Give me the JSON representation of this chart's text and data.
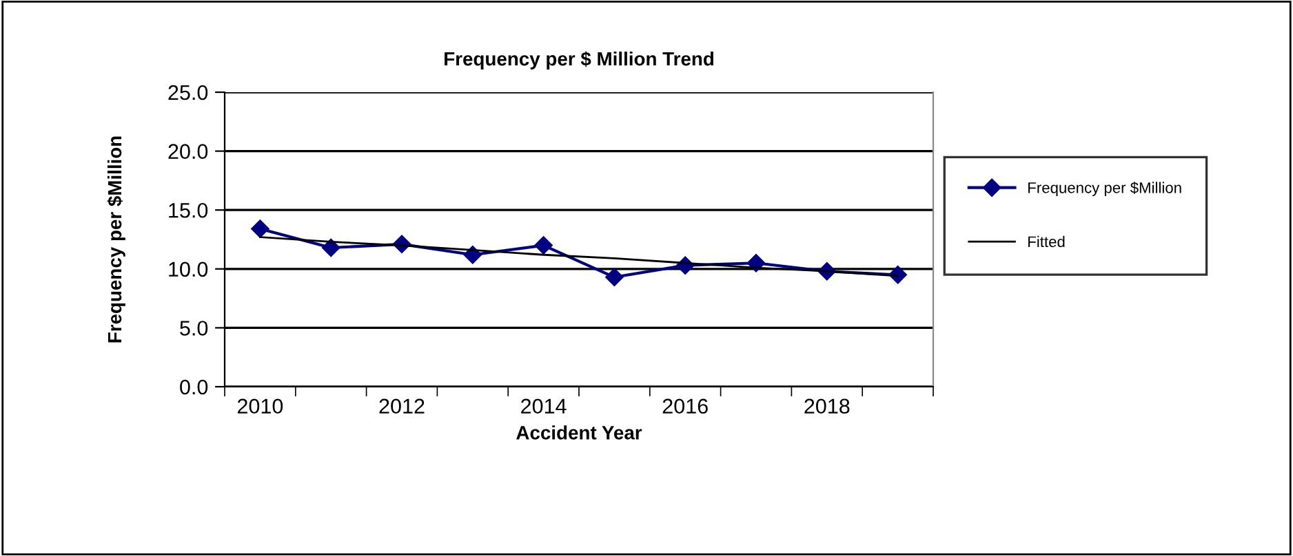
{
  "chart_data": {
    "type": "line",
    "title": "Frequency per $ Million Trend",
    "xlabel": "Accident Year",
    "ylabel": "Frequency per $Million",
    "categories": [
      "2010",
      null,
      "2012",
      null,
      "2014",
      null,
      "2016",
      null,
      "2018",
      null
    ],
    "series": [
      {
        "name": "Frequency per $Million",
        "color": "#000080",
        "marker": "diamond",
        "values": [
          13.4,
          11.8,
          12.1,
          11.2,
          12.0,
          9.3,
          10.3,
          10.5,
          9.8,
          9.5
        ]
      },
      {
        "name": "Fitted",
        "color": "#000000",
        "marker": "none",
        "values": [
          12.7,
          12.3,
          12.0,
          11.6,
          11.2,
          10.9,
          10.5,
          10.1,
          9.8,
          9.4
        ]
      }
    ],
    "ylim": [
      0,
      25
    ],
    "yticks": [
      {
        "value": 0,
        "label": "0.0"
      },
      {
        "value": 5,
        "label": "5.0"
      },
      {
        "value": 10,
        "label": "10.0"
      },
      {
        "value": 15,
        "label": "15.0"
      },
      {
        "value": 20,
        "label": "20.0"
      },
      {
        "value": 25,
        "label": "25.0"
      }
    ],
    "grid": "y",
    "legend": "right"
  }
}
